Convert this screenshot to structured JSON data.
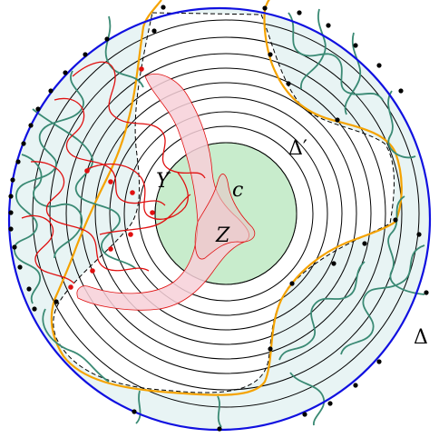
{
  "labels": {
    "Y": "Y",
    "Z": "Z",
    "c": "c",
    "delta_prime": "Δ′",
    "delta": "Δ"
  },
  "colors": {
    "outer_circle": "#1010e0",
    "annulus_fill": "#e8f4f4",
    "concentric": "#000000",
    "orange_curve": "#f5a300",
    "green_curves": "#3a8a74",
    "red_curves": "#e01010",
    "pink_band": "#f7d0d8",
    "center_disk": "#c8eccc",
    "dots": "#000000",
    "red_dots": "#e01010"
  }
}
